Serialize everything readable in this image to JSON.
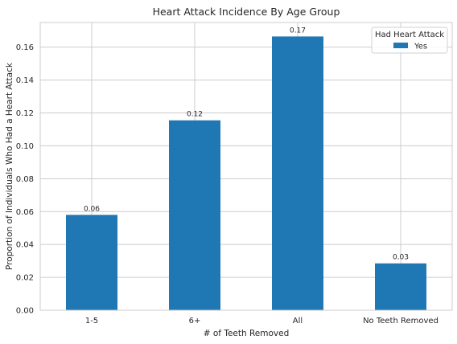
{
  "chart_data": {
    "type": "bar",
    "title": "Heart Attack Incidence By Age Group",
    "xlabel": "# of Teeth Removed",
    "ylabel": "Proportion of Individuals Who Had a Heart Attack",
    "categories": [
      "1-5",
      "6+",
      "All",
      "No Teeth Removed"
    ],
    "series": [
      {
        "name": "Yes",
        "values": [
          0.058,
          0.1155,
          0.1665,
          0.0285
        ],
        "color": "#1f77b4"
      }
    ],
    "data_labels": [
      "0.06",
      "0.12",
      "0.17",
      "0.03"
    ],
    "ylim": [
      0,
      0.175
    ],
    "yticks": [
      0.0,
      0.02,
      0.04,
      0.06,
      0.08,
      0.1,
      0.12,
      0.14,
      0.16
    ],
    "ytick_labels": [
      "0.00",
      "0.02",
      "0.04",
      "0.06",
      "0.08",
      "0.10",
      "0.12",
      "0.14",
      "0.16"
    ],
    "grid": true,
    "legend": {
      "title": "Had Heart Attack",
      "placement": "top-right"
    }
  }
}
